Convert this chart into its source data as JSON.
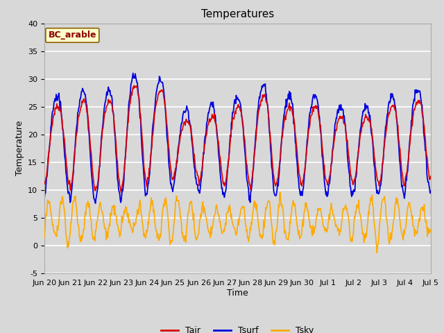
{
  "title": "Temperatures",
  "xlabel": "Time",
  "ylabel": "Temperature",
  "ylim": [
    -5,
    40
  ],
  "xlim": [
    0,
    15
  ],
  "site_label": "BC_arable",
  "line_colors": {
    "Tair": "#dd0000",
    "Tsurf": "#0000dd",
    "Tsky": "#ffaa00"
  },
  "background_color": "#d8d8d8",
  "plot_bg_color": "#d8d8d8",
  "grid_color": "white",
  "title_fontsize": 11,
  "label_fontsize": 9,
  "tick_fontsize": 8,
  "legend_fontsize": 9,
  "n_points": 720,
  "yticks": [
    -5,
    0,
    5,
    10,
    15,
    20,
    25,
    30,
    35,
    40
  ],
  "tick_labels": [
    "Jun 20",
    "Jun 21",
    "Jun 22",
    "Jun 23",
    "Jun 24",
    "Jun 25",
    "Jun 26",
    "Jun 27",
    "Jun 28",
    "Jun 29",
    "Jun 30",
    "Jul 1",
    "Jul 2",
    "Jul 3",
    "Jul 4",
    "Jul 5"
  ]
}
